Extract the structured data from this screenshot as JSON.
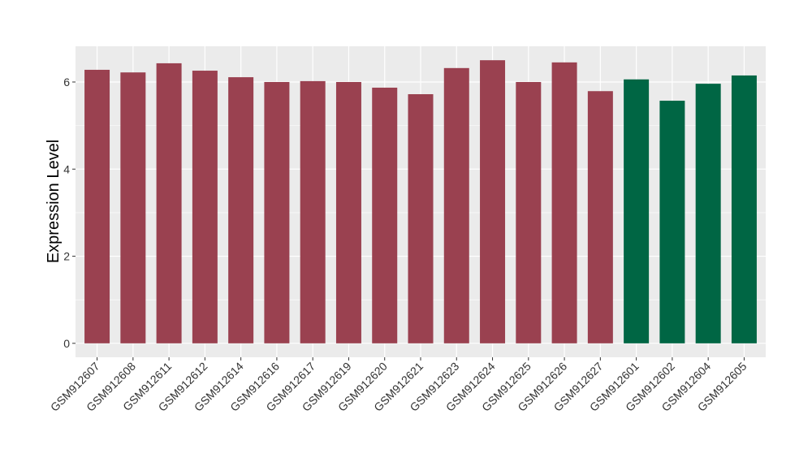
{
  "chart_data": {
    "type": "bar",
    "title": "",
    "xlabel": "",
    "ylabel": "Expression Level",
    "ylim": [
      -0.32,
      6.82
    ],
    "yticks": [
      0,
      2,
      4,
      6
    ],
    "grid": true,
    "legend": "none",
    "categories": [
      "GSM912607",
      "GSM912608",
      "GSM912611",
      "GSM912612",
      "GSM912614",
      "GSM912616",
      "GSM912617",
      "GSM912619",
      "GSM912620",
      "GSM912621",
      "GSM912623",
      "GSM912624",
      "GSM912625",
      "GSM912626",
      "GSM912627",
      "GSM912601",
      "GSM912602",
      "GSM912604",
      "GSM912605"
    ],
    "values": [
      6.28,
      6.22,
      6.43,
      6.26,
      6.11,
      6.0,
      6.02,
      6.0,
      5.87,
      5.72,
      6.32,
      6.5,
      6.0,
      6.45,
      5.79,
      6.06,
      5.57,
      5.96,
      6.15
    ],
    "groups": [
      0,
      0,
      0,
      0,
      0,
      0,
      0,
      0,
      0,
      0,
      0,
      0,
      0,
      0,
      0,
      1,
      1,
      1,
      1
    ],
    "colors": [
      "#9a4150",
      "#006644"
    ]
  }
}
